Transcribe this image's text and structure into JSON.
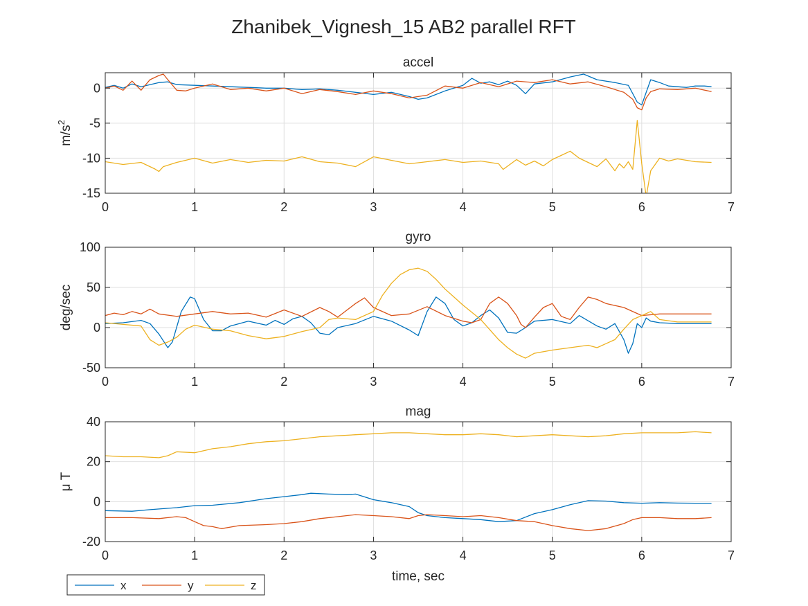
{
  "figure": {
    "title": "Zhanibek_Vignesh_15 AB2 parallel RFT"
  },
  "colors": {
    "x": "#0072BD",
    "y": "#D95319",
    "z": "#EDB120",
    "axis": "#262626",
    "grid": "#DFDFDF"
  },
  "legend": {
    "placement": "bottom-left",
    "entries": [
      "x",
      "y",
      "z"
    ]
  },
  "chart_data": [
    {
      "type": "line",
      "title": "accel",
      "xlabel": "",
      "ylabel": "m/s",
      "ylabel_superscript": "2",
      "xlim": [
        0,
        7
      ],
      "ylim": [
        -15,
        2.2
      ],
      "xticks": [
        0,
        1,
        2,
        3,
        4,
        5,
        6,
        7
      ],
      "yticks": [
        -15,
        -10,
        -5,
        0
      ],
      "grid": true,
      "series": [
        {
          "name": "x",
          "color_key": "x",
          "x": [
            0,
            0.1,
            0.2,
            0.3,
            0.4,
            0.5,
            0.6,
            0.7,
            0.8,
            1.0,
            1.2,
            1.4,
            1.6,
            1.8,
            2.0,
            2.2,
            2.4,
            2.6,
            2.8,
            3.0,
            3.2,
            3.4,
            3.5,
            3.6,
            3.8,
            4.0,
            4.1,
            4.2,
            4.3,
            4.4,
            4.5,
            4.6,
            4.7,
            4.8,
            5.0,
            5.2,
            5.35,
            5.5,
            5.7,
            5.85,
            5.95,
            6.0,
            6.05,
            6.1,
            6.2,
            6.3,
            6.4,
            6.5,
            6.6,
            6.7,
            6.78
          ],
          "y": [
            0.1,
            0.4,
            0.0,
            0.6,
            0.2,
            0.5,
            0.8,
            0.9,
            0.5,
            0.4,
            0.3,
            0.2,
            0.1,
            0.0,
            0.0,
            -0.2,
            -0.1,
            -0.3,
            -0.6,
            -0.9,
            -0.6,
            -1.2,
            -1.6,
            -1.4,
            -0.4,
            0.4,
            1.4,
            0.7,
            0.9,
            0.5,
            1.0,
            0.4,
            -0.8,
            0.6,
            0.9,
            1.6,
            2.0,
            1.2,
            0.8,
            0.4,
            -2.0,
            -2.4,
            -0.6,
            1.2,
            0.8,
            0.3,
            0.2,
            0.1,
            0.3,
            0.3,
            0.2
          ]
        },
        {
          "name": "y",
          "color_key": "y",
          "x": [
            0,
            0.1,
            0.2,
            0.3,
            0.4,
            0.5,
            0.55,
            0.6,
            0.65,
            0.7,
            0.8,
            0.9,
            1.0,
            1.2,
            1.4,
            1.6,
            1.8,
            2.0,
            2.2,
            2.4,
            2.6,
            2.8,
            3.0,
            3.2,
            3.4,
            3.5,
            3.6,
            3.8,
            4.0,
            4.2,
            4.4,
            4.6,
            4.8,
            5.0,
            5.2,
            5.4,
            5.6,
            5.8,
            5.9,
            5.95,
            6.0,
            6.05,
            6.1,
            6.2,
            6.4,
            6.6,
            6.78
          ],
          "y": [
            0.0,
            0.3,
            -0.3,
            1.0,
            -0.3,
            1.2,
            1.5,
            1.8,
            2.0,
            1.2,
            -0.3,
            -0.4,
            0.0,
            0.6,
            -0.2,
            0.0,
            -0.4,
            0.0,
            -0.8,
            -0.2,
            -0.5,
            -0.9,
            -0.4,
            -0.8,
            -1.4,
            -1.2,
            -1.0,
            0.3,
            0.0,
            0.8,
            0.2,
            1.0,
            0.8,
            1.2,
            0.6,
            0.9,
            0.2,
            -0.6,
            -1.6,
            -2.8,
            -3.1,
            -1.4,
            -0.5,
            -0.1,
            -0.2,
            0.0,
            -0.5
          ]
        },
        {
          "name": "z",
          "color_key": "z",
          "x": [
            0,
            0.2,
            0.4,
            0.55,
            0.6,
            0.65,
            0.8,
            1.0,
            1.2,
            1.4,
            1.6,
            1.8,
            2.0,
            2.2,
            2.4,
            2.6,
            2.8,
            3.0,
            3.2,
            3.4,
            3.6,
            3.8,
            4.0,
            4.2,
            4.4,
            4.45,
            4.6,
            4.7,
            4.8,
            4.9,
            5.0,
            5.1,
            5.2,
            5.3,
            5.4,
            5.5,
            5.6,
            5.7,
            5.75,
            5.8,
            5.85,
            5.9,
            5.95,
            6.0,
            6.05,
            6.1,
            6.2,
            6.3,
            6.4,
            6.6,
            6.78
          ],
          "y": [
            -10.5,
            -10.9,
            -10.6,
            -11.5,
            -11.9,
            -11.2,
            -10.6,
            -10.0,
            -10.7,
            -10.2,
            -10.6,
            -10.3,
            -10.4,
            -9.8,
            -10.5,
            -10.7,
            -11.2,
            -9.8,
            -10.3,
            -10.8,
            -10.5,
            -10.2,
            -10.6,
            -10.4,
            -10.8,
            -11.6,
            -10.2,
            -11.0,
            -10.4,
            -11.1,
            -10.2,
            -9.6,
            -9.0,
            -10.0,
            -10.6,
            -11.2,
            -10.1,
            -11.8,
            -10.8,
            -11.4,
            -10.5,
            -11.6,
            -4.6,
            -10.8,
            -15.5,
            -11.8,
            -10.0,
            -10.4,
            -10.1,
            -10.5,
            -10.6
          ]
        }
      ]
    },
    {
      "type": "line",
      "title": "gyro",
      "xlabel": "",
      "ylabel": "deg/sec",
      "xlim": [
        0,
        7
      ],
      "ylim": [
        -50,
        100
      ],
      "xticks": [
        0,
        1,
        2,
        3,
        4,
        5,
        6,
        7
      ],
      "yticks": [
        -50,
        0,
        50,
        100
      ],
      "grid": true,
      "series": [
        {
          "name": "x",
          "color_key": "x",
          "x": [
            0,
            0.2,
            0.4,
            0.5,
            0.6,
            0.7,
            0.75,
            0.85,
            0.95,
            1.0,
            1.1,
            1.2,
            1.3,
            1.4,
            1.6,
            1.8,
            1.9,
            2.0,
            2.1,
            2.2,
            2.3,
            2.4,
            2.5,
            2.6,
            2.8,
            3.0,
            3.2,
            3.4,
            3.5,
            3.6,
            3.7,
            3.8,
            3.9,
            4.0,
            4.1,
            4.2,
            4.3,
            4.4,
            4.5,
            4.6,
            4.7,
            4.8,
            5.0,
            5.2,
            5.3,
            5.5,
            5.6,
            5.7,
            5.75,
            5.8,
            5.85,
            5.9,
            5.95,
            6.0,
            6.05,
            6.1,
            6.2,
            6.4,
            6.6,
            6.78
          ],
          "y": [
            5,
            6,
            9,
            5,
            -8,
            -25,
            -18,
            20,
            38,
            36,
            10,
            -4,
            -4,
            2,
            8,
            3,
            9,
            4,
            11,
            14,
            6,
            -7,
            -9,
            0,
            5,
            14,
            8,
            -3,
            -10,
            20,
            38,
            30,
            10,
            2,
            6,
            15,
            22,
            12,
            -6,
            -7,
            0,
            8,
            10,
            5,
            15,
            2,
            -2,
            5,
            -5,
            -15,
            -32,
            -20,
            5,
            0,
            12,
            8,
            6,
            5,
            5,
            5
          ]
        },
        {
          "name": "y",
          "color_key": "y",
          "x": [
            0,
            0.1,
            0.2,
            0.3,
            0.4,
            0.5,
            0.6,
            0.8,
            1.0,
            1.2,
            1.4,
            1.6,
            1.8,
            2.0,
            2.2,
            2.4,
            2.5,
            2.6,
            2.8,
            2.9,
            3.0,
            3.2,
            3.4,
            3.6,
            3.8,
            4.0,
            4.1,
            4.2,
            4.3,
            4.4,
            4.5,
            4.6,
            4.65,
            4.7,
            4.8,
            4.9,
            5.0,
            5.1,
            5.2,
            5.3,
            5.4,
            5.5,
            5.6,
            5.8,
            6.0,
            6.2,
            6.4,
            6.6,
            6.78
          ],
          "y": [
            15,
            18,
            16,
            20,
            17,
            23,
            17,
            14,
            17,
            20,
            17,
            18,
            13,
            22,
            14,
            25,
            20,
            13,
            30,
            37,
            25,
            15,
            17,
            26,
            15,
            8,
            6,
            10,
            30,
            38,
            30,
            15,
            4,
            0,
            13,
            25,
            30,
            14,
            10,
            25,
            38,
            35,
            30,
            25,
            15,
            17,
            17,
            17,
            17
          ]
        },
        {
          "name": "z",
          "color_key": "z",
          "x": [
            0,
            0.2,
            0.4,
            0.5,
            0.6,
            0.7,
            0.8,
            0.9,
            1.0,
            1.2,
            1.4,
            1.6,
            1.8,
            2.0,
            2.2,
            2.4,
            2.5,
            2.6,
            2.8,
            3.0,
            3.1,
            3.2,
            3.3,
            3.4,
            3.5,
            3.6,
            3.7,
            3.8,
            3.9,
            4.0,
            4.2,
            4.4,
            4.5,
            4.6,
            4.7,
            4.8,
            5.0,
            5.2,
            5.4,
            5.5,
            5.6,
            5.7,
            5.8,
            5.9,
            6.0,
            6.1,
            6.2,
            6.4,
            6.6,
            6.78
          ],
          "y": [
            6,
            4,
            2,
            -15,
            -22,
            -18,
            -12,
            -2,
            3,
            -2,
            -4,
            -10,
            -14,
            -11,
            -5,
            0,
            10,
            12,
            10,
            20,
            40,
            55,
            66,
            72,
            74,
            70,
            60,
            48,
            38,
            28,
            10,
            -15,
            -25,
            -33,
            -38,
            -32,
            -28,
            -25,
            -22,
            -25,
            -20,
            -15,
            -2,
            10,
            15,
            20,
            10,
            7,
            7,
            7
          ]
        }
      ]
    },
    {
      "type": "line",
      "title": "mag",
      "xlabel": "time, sec",
      "ylabel": "μ T",
      "xlim": [
        0,
        7
      ],
      "ylim": [
        -20,
        40
      ],
      "xticks": [
        0,
        1,
        2,
        3,
        4,
        5,
        6,
        7
      ],
      "yticks": [
        -20,
        0,
        20,
        40
      ],
      "grid": true,
      "series": [
        {
          "name": "x",
          "color_key": "x",
          "x": [
            0,
            0.3,
            0.5,
            0.8,
            1.0,
            1.2,
            1.5,
            1.8,
            2.0,
            2.2,
            2.3,
            2.5,
            2.7,
            2.8,
            3.0,
            3.2,
            3.4,
            3.5,
            3.6,
            3.8,
            4.0,
            4.2,
            4.4,
            4.6,
            4.8,
            5.0,
            5.2,
            5.4,
            5.6,
            5.8,
            6.0,
            6.2,
            6.4,
            6.6,
            6.78
          ],
          "y": [
            -4.5,
            -4.8,
            -4.0,
            -3.0,
            -2.0,
            -1.8,
            -0.5,
            1.5,
            2.5,
            3.5,
            4.2,
            3.8,
            3.5,
            3.8,
            1.0,
            -0.5,
            -2.5,
            -5.5,
            -7.0,
            -8.0,
            -8.5,
            -9.0,
            -10.0,
            -9.5,
            -6.0,
            -4.0,
            -1.5,
            0.5,
            0.3,
            -0.5,
            -0.8,
            -0.5,
            -0.7,
            -0.8,
            -0.8
          ]
        },
        {
          "name": "y",
          "color_key": "y",
          "x": [
            0,
            0.3,
            0.6,
            0.8,
            0.9,
            1.0,
            1.1,
            1.2,
            1.3,
            1.5,
            1.8,
            2.0,
            2.2,
            2.4,
            2.6,
            2.8,
            3.0,
            3.2,
            3.4,
            3.5,
            3.6,
            3.8,
            4.0,
            4.2,
            4.4,
            4.6,
            4.8,
            5.0,
            5.2,
            5.4,
            5.6,
            5.8,
            5.9,
            6.0,
            6.2,
            6.4,
            6.6,
            6.78
          ],
          "y": [
            -8,
            -8,
            -8.5,
            -7.5,
            -8,
            -10,
            -12,
            -12.5,
            -13.5,
            -12,
            -11.5,
            -11,
            -10,
            -8.5,
            -7.5,
            -6.5,
            -7,
            -7.5,
            -8.5,
            -7,
            -6.5,
            -7,
            -7.5,
            -7,
            -8,
            -9.5,
            -10,
            -12,
            -13.5,
            -14.5,
            -13.5,
            -11,
            -9,
            -8,
            -8,
            -8.5,
            -8.5,
            -8
          ]
        },
        {
          "name": "z",
          "color_key": "z",
          "x": [
            0,
            0.2,
            0.4,
            0.6,
            0.7,
            0.8,
            1.0,
            1.2,
            1.4,
            1.6,
            1.8,
            2.0,
            2.2,
            2.4,
            2.6,
            2.8,
            3.0,
            3.2,
            3.4,
            3.6,
            3.8,
            4.0,
            4.2,
            4.4,
            4.6,
            4.8,
            5.0,
            5.2,
            5.4,
            5.6,
            5.8,
            6.0,
            6.2,
            6.4,
            6.6,
            6.78
          ],
          "y": [
            23,
            22.5,
            22.5,
            22,
            23,
            25,
            24.5,
            26.5,
            27.5,
            29,
            30,
            30.5,
            31.5,
            32.5,
            33,
            33.5,
            34,
            34.5,
            34.5,
            34,
            33.5,
            33.5,
            34,
            33.5,
            32.5,
            33,
            33.5,
            33,
            32.5,
            33,
            34,
            34.5,
            34.5,
            34.5,
            35,
            34.5
          ]
        }
      ]
    }
  ]
}
